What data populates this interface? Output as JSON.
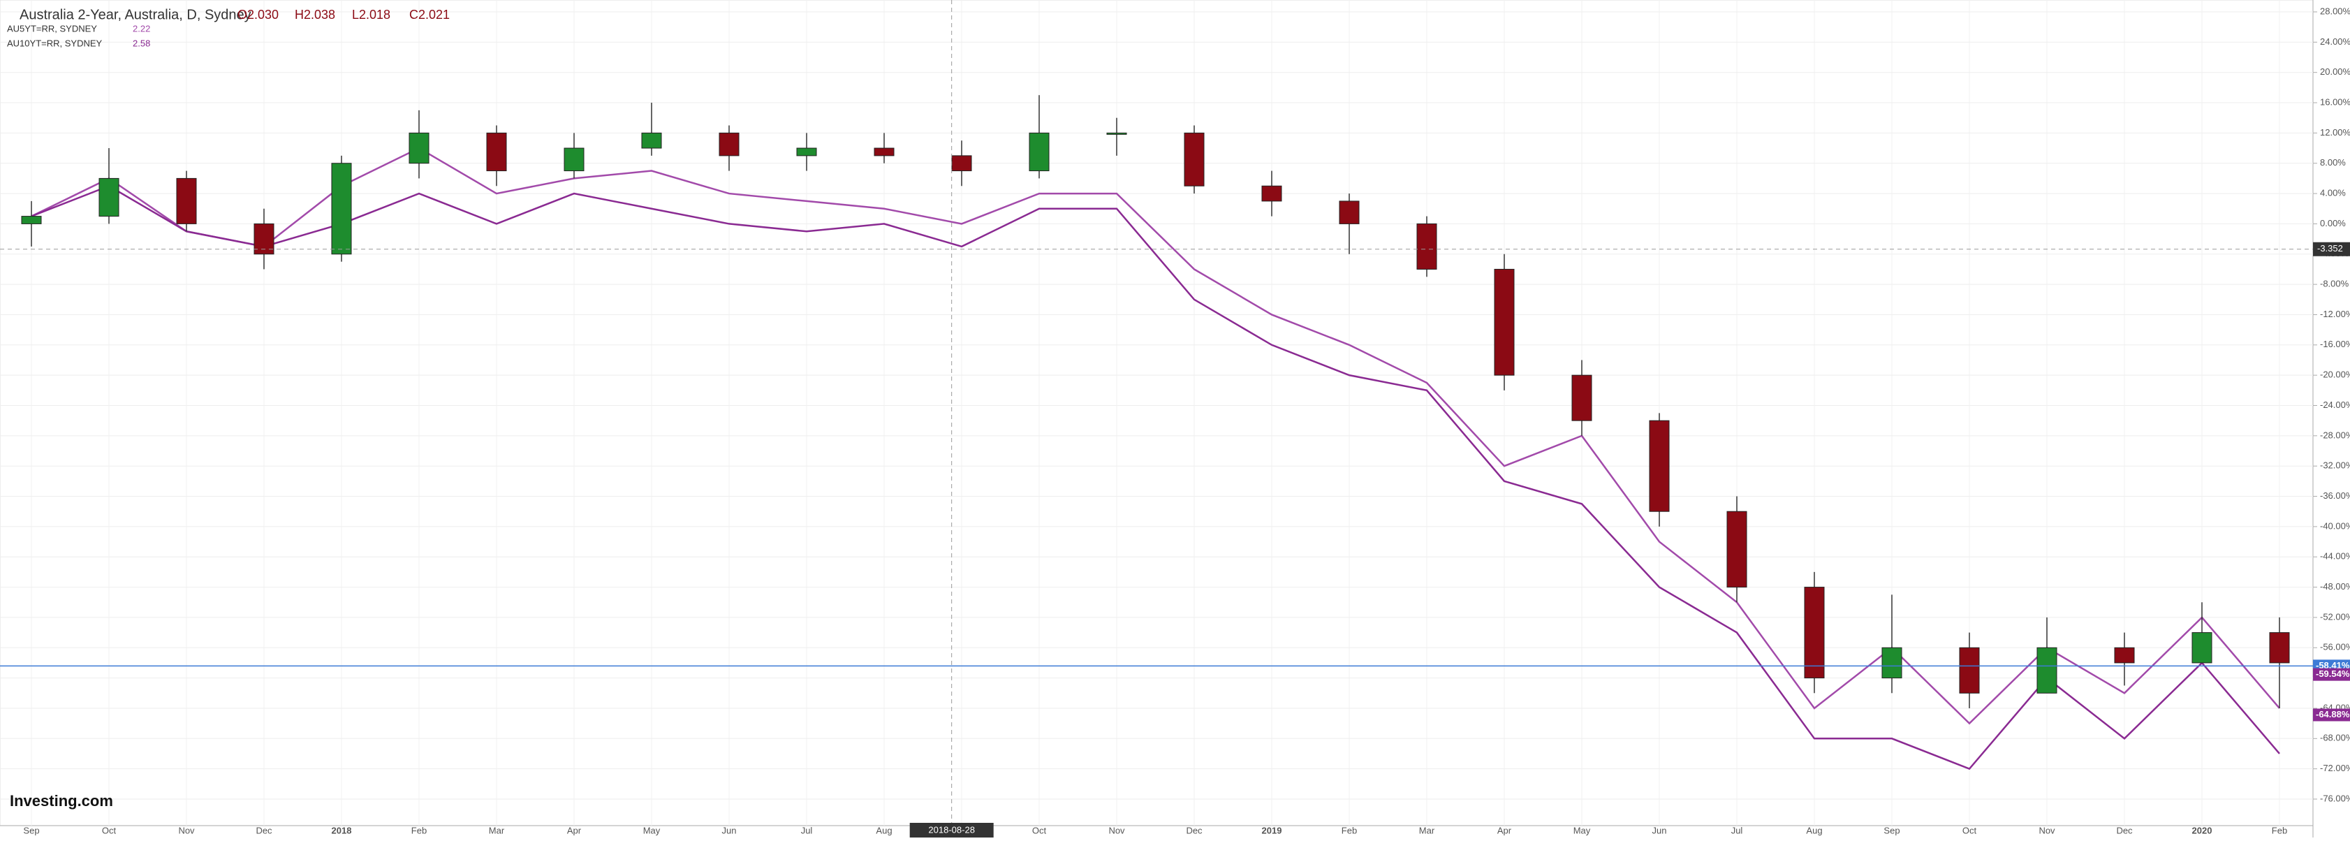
{
  "chart_data": {
    "type": "candlestick",
    "title": "Australia 2-Year, Australia, D, Sydney",
    "ohlc_labels": [
      "O2.030",
      "H2.038",
      "L2.018",
      "C2.021"
    ],
    "categories": [
      "Sep",
      "Oct",
      "Nov",
      "Dec",
      "2018",
      "Feb",
      "Mar",
      "Apr",
      "May",
      "Jun",
      "Jul",
      "Aug",
      null,
      "Oct",
      "Nov",
      "Dec",
      "2019",
      "Feb",
      "Mar",
      "Apr",
      "May",
      "Jun",
      "Jul",
      "Aug",
      "Sep",
      "Oct",
      "Nov",
      "Dec",
      "2020",
      "Feb"
    ],
    "crosshair_date": "2018-08-28",
    "crosshair_value": {
      "value": -3.352,
      "label": "-3.352"
    },
    "open": [
      0,
      1,
      6,
      0,
      -4,
      8,
      12,
      7,
      10,
      12,
      9,
      10,
      9,
      7,
      12,
      12,
      5,
      3,
      0,
      -6,
      -20,
      -26,
      -38,
      -48,
      -60,
      -56,
      -62,
      -56,
      -58,
      -54
    ],
    "high": [
      3,
      10,
      7,
      2,
      9,
      15,
      13,
      12,
      16,
      13,
      12,
      12,
      11,
      17,
      14,
      13,
      7,
      4,
      1,
      -4,
      -18,
      -25,
      -36,
      -46,
      -49,
      -54,
      -52,
      -54,
      -50,
      -52
    ],
    "low": [
      -3,
      0,
      -1,
      -6,
      -5,
      6,
      5,
      6,
      9,
      7,
      7,
      8,
      5,
      6,
      9,
      4,
      1,
      -4,
      -7,
      -22,
      -28,
      -40,
      -50,
      -62,
      -62,
      -64,
      -62,
      -61,
      -58,
      -64
    ],
    "close": [
      1,
      6,
      0,
      -4,
      8,
      12,
      7,
      10,
      12,
      9,
      10,
      9,
      7,
      12,
      12,
      5,
      3,
      0,
      -6,
      -20,
      -26,
      -38,
      -48,
      -60,
      -56,
      -62,
      -56,
      -58,
      -54,
      -58
    ],
    "up_color": "#1e8c2e",
    "down_color": "#8b0a14",
    "series": [
      {
        "name": "AU5YT=RR, SYDNEY",
        "last": "2.22",
        "color": "#a24aaa",
        "values": [
          1,
          6,
          -1,
          -3,
          5,
          10,
          4,
          6,
          7,
          4,
          3,
          2,
          0,
          4,
          4,
          -6,
          -12,
          -16,
          -21,
          -32,
          -28,
          -42,
          -50,
          -64,
          -56,
          -66,
          -56,
          -62,
          -52,
          -64
        ]
      },
      {
        "name": "AU10YT=RR, SYDNEY",
        "last": "2.58",
        "color": "#8a2a92",
        "values": [
          1,
          5,
          -1,
          -3,
          0,
          4,
          0,
          4,
          2,
          0,
          -1,
          0,
          -3,
          2,
          2,
          -10,
          -16,
          -20,
          -22,
          -34,
          -37,
          -48,
          -54,
          -68,
          -68,
          -72,
          -60,
          -68,
          -58,
          -70
        ]
      }
    ],
    "price_labels": [
      {
        "value": -58.41,
        "label": "-58.41%",
        "color": "#3d7bd6"
      },
      {
        "value": -59.54,
        "label": "-59.54%",
        "color": "#8a2a92"
      },
      {
        "value": -64.88,
        "label": "-64.88%",
        "color": "#8a2a92"
      }
    ],
    "ylim": [
      -78,
      30
    ],
    "yticks": [
      {
        "value": 28,
        "label": "28.00%"
      },
      {
        "value": 24,
        "label": "24.00%"
      },
      {
        "value": 20,
        "label": "20.00%"
      },
      {
        "value": 16,
        "label": "16.00%"
      },
      {
        "value": 12,
        "label": "12.00%"
      },
      {
        "value": 8,
        "label": "8.00%"
      },
      {
        "value": 4,
        "label": "4.00%"
      },
      {
        "value": 0,
        "label": "0.00%"
      },
      {
        "value": -4,
        "label": "-4.00%"
      },
      {
        "value": -8,
        "label": "-8.00%"
      },
      {
        "value": -12,
        "label": "-12.00%"
      },
      {
        "value": -16,
        "label": "-16.00%"
      },
      {
        "value": -20,
        "label": "-20.00%"
      },
      {
        "value": -24,
        "label": "-24.00%"
      },
      {
        "value": -28,
        "label": "-28.00%"
      },
      {
        "value": -32,
        "label": "-32.00%"
      },
      {
        "value": -36,
        "label": "-36.00%"
      },
      {
        "value": -40,
        "label": "-40.00%"
      },
      {
        "value": -44,
        "label": "-44.00%"
      },
      {
        "value": -48,
        "label": "-48.00%"
      },
      {
        "value": -52,
        "label": "-52.00%"
      },
      {
        "value": -56,
        "label": "-56.00%"
      },
      {
        "value": -60,
        "label": "-60.00%"
      },
      {
        "value": -64,
        "label": "-64.00%"
      },
      {
        "value": -68,
        "label": "-68.00%"
      },
      {
        "value": -72,
        "label": "-72.00%"
      },
      {
        "value": -76,
        "label": "-76.00%"
      }
    ],
    "grid": true,
    "logo": "Investing.com"
  }
}
